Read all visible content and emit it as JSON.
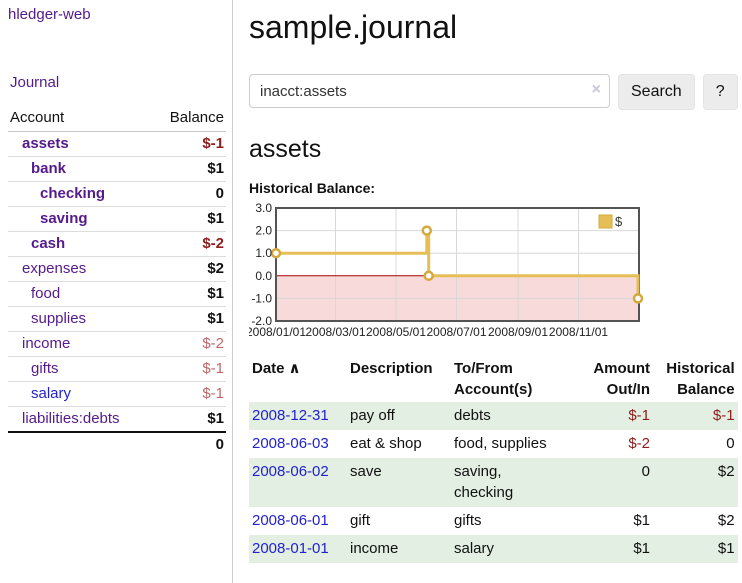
{
  "colors": {
    "accent_purple": "#551a8b",
    "link_blue": "#2222cc",
    "negative_strong": "#8f1d1d",
    "negative_muted": "#bd6868",
    "row_stripe_green": "#e3efe3",
    "button_bg": "#ececec"
  },
  "sidebar": {
    "brand": "hledger-web",
    "nav": {
      "journal": "Journal"
    },
    "table_headers": {
      "account": "Account",
      "balance": "Balance"
    },
    "accounts": [
      {
        "name": "assets",
        "indent": 1,
        "bold": true,
        "balance": "$-1"
      },
      {
        "name": "bank",
        "indent": 2,
        "bold": true,
        "balance": "$1"
      },
      {
        "name": "checking",
        "indent": 3,
        "bold": true,
        "balance": "0"
      },
      {
        "name": "saving",
        "indent": 3,
        "bold": true,
        "balance": "$1"
      },
      {
        "name": "cash",
        "indent": 2,
        "bold": true,
        "balance": "$-2"
      },
      {
        "name": "expenses",
        "indent": 1,
        "bold": false,
        "balance": "$2"
      },
      {
        "name": "food",
        "indent": 2,
        "bold": false,
        "balance": "$1"
      },
      {
        "name": "supplies",
        "indent": 2,
        "bold": false,
        "balance": "$1"
      },
      {
        "name": "income",
        "indent": 1,
        "bold": false,
        "balance": "$-2"
      },
      {
        "name": "gifts",
        "indent": 2,
        "bold": false,
        "balance": "$-1"
      },
      {
        "name": "salary",
        "indent": 2,
        "bold": false,
        "balance": "$-1",
        "highlight": true
      },
      {
        "name": "liabilities:debts",
        "indent": 1,
        "bold": false,
        "balance": "$1"
      }
    ],
    "total": "0"
  },
  "main": {
    "title": "sample.journal",
    "search": {
      "value": "inacct:assets",
      "clear_icon": "×",
      "button": "Search",
      "help_button": "?"
    },
    "account_heading": "assets",
    "chart_heading": "Historical Balance:"
  },
  "chart_data": {
    "type": "line",
    "title": "Historical Balance",
    "step": true,
    "series": [
      {
        "name": "$",
        "points": [
          {
            "x": "2008-01-01",
            "y": 1
          },
          {
            "x": "2008-06-01",
            "y": 2
          },
          {
            "x": "2008-06-03",
            "y": 0
          },
          {
            "x": "2008-12-31",
            "y": -1
          }
        ]
      }
    ],
    "xlim": [
      "2008-01-01",
      "2009-01-01"
    ],
    "ylim": [
      -2,
      3
    ],
    "y_ticks": [
      "3.0",
      "2.0",
      "1.0",
      "0.0",
      "-1.0",
      "-2.0"
    ],
    "x_ticks": [
      {
        "date": "2008-01-01",
        "label": "2008/01/01"
      },
      {
        "date": "2008-03-01",
        "label": "2008/03/01"
      },
      {
        "date": "2008-05-01",
        "label": "2008/05/01"
      },
      {
        "date": "2008-07-01",
        "label": "2008/07/01"
      },
      {
        "date": "2008-09-01",
        "label": "2008/09/01"
      },
      {
        "date": "2008-11-01",
        "label": "2008/11/01"
      }
    ],
    "legend": {
      "label": "$",
      "position": "top-right"
    },
    "grid": true,
    "colors": {
      "line": "#e5bf56",
      "marker_stroke": "#d4a93c",
      "negative_fill": "#f9dada",
      "zero_line": "#a40000",
      "grid": "#d8d8d8",
      "border": "#545454"
    }
  },
  "register": {
    "headers": {
      "date": "Date",
      "sort_icon": "∧",
      "description": "Description",
      "accounts": "To/From\nAccount(s)",
      "amount": "Amount\nOut/In",
      "balance": "Historical\nBalance"
    },
    "rows": [
      {
        "date": "2008-12-31",
        "description": "pay off",
        "accounts": "debts",
        "amount": "$-1",
        "balance": "$-1"
      },
      {
        "date": "2008-06-03",
        "description": "eat & shop",
        "accounts": "food, supplies",
        "amount": "$-2",
        "balance": "0"
      },
      {
        "date": "2008-06-02",
        "description": "save",
        "accounts": "saving,\nchecking",
        "amount": "0",
        "balance": "$2"
      },
      {
        "date": "2008-06-01",
        "description": "gift",
        "accounts": "gifts",
        "amount": "$1",
        "balance": "$2"
      },
      {
        "date": "2008-01-01",
        "description": "income",
        "accounts": "salary",
        "amount": "$1",
        "balance": "$1"
      }
    ]
  }
}
